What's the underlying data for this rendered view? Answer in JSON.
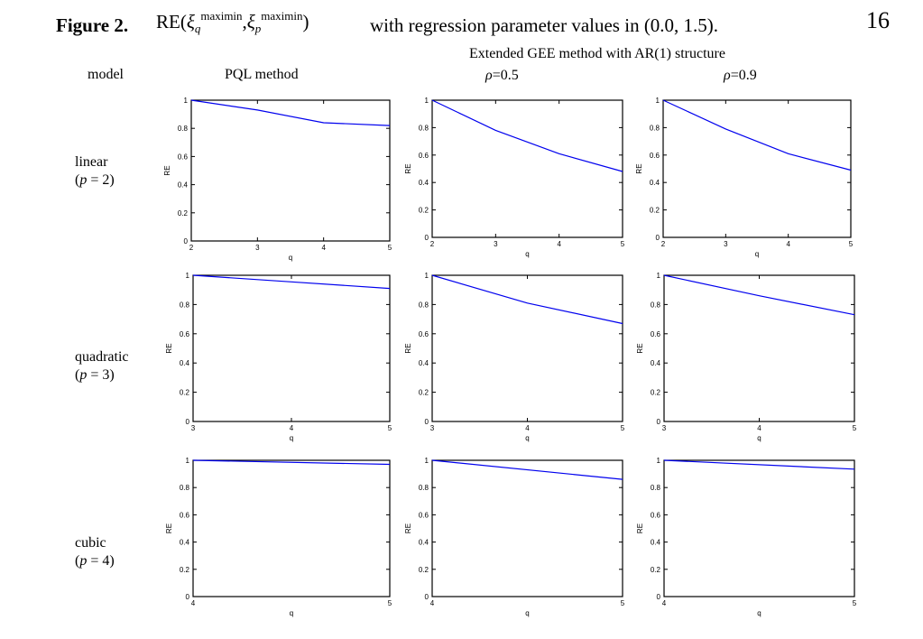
{
  "figure": {
    "label": "Figure 2.",
    "re_prefix": "RE(",
    "xi_q": "ξ",
    "sup_q": "maximin",
    "sub_q": "q",
    "comma": ",",
    "xi_p": "ξ",
    "sup_p": "maximin",
    "sub_p": "p",
    "close": ")",
    "caption_rest": "with regression parameter values in (0.0, 1.5).",
    "page_number": "16"
  },
  "headers": {
    "model": "model",
    "pql": "PQL method",
    "gee": "Extended GEE method with AR(1) structure",
    "rho_symbol": "ρ",
    "rho1": "=0.5",
    "rho2": "=0.9"
  },
  "rows": [
    {
      "name": "linear",
      "p_var": "p",
      "p_val": " = 2)"
    },
    {
      "name": "quadratic",
      "p_var": "p",
      "p_val": " = 3)"
    },
    {
      "name": "cubic",
      "p_var": "p",
      "p_val": " = 4)"
    }
  ],
  "line_color": "#0000ee",
  "chart_data": [
    {
      "type": "line",
      "row": "linear",
      "method": "PQL",
      "xlabel": "q",
      "ylabel": "RE",
      "x": [
        2,
        3,
        4,
        5
      ],
      "y": [
        1.0,
        0.93,
        0.84,
        0.82
      ],
      "xlim": [
        2,
        5
      ],
      "ylim": [
        0,
        1
      ],
      "xticks": [
        "2",
        "3",
        "4",
        "5"
      ],
      "yticks": [
        "0",
        "0.2",
        "0.4",
        "0.6",
        "0.8",
        "1"
      ]
    },
    {
      "type": "line",
      "row": "linear",
      "method": "GEE rho=0.5",
      "xlabel": "q",
      "ylabel": "RE",
      "x": [
        2,
        3,
        4,
        5
      ],
      "y": [
        1.0,
        0.78,
        0.61,
        0.48
      ],
      "xlim": [
        2,
        5
      ],
      "ylim": [
        0,
        1
      ],
      "xticks": [
        "2",
        "3",
        "4",
        "5"
      ],
      "yticks": [
        "0",
        "0.2",
        "0.4",
        "0.6",
        "0.8",
        "1"
      ]
    },
    {
      "type": "line",
      "row": "linear",
      "method": "GEE rho=0.9",
      "xlabel": "q",
      "ylabel": "RE",
      "x": [
        2,
        3,
        4,
        5
      ],
      "y": [
        1.0,
        0.79,
        0.61,
        0.49
      ],
      "xlim": [
        2,
        5
      ],
      "ylim": [
        0,
        1
      ],
      "xticks": [
        "2",
        "3",
        "4",
        "5"
      ],
      "yticks": [
        "0",
        "0.2",
        "0.4",
        "0.6",
        "0.8",
        "1"
      ]
    },
    {
      "type": "line",
      "row": "quadratic",
      "method": "PQL",
      "xlabel": "q",
      "ylabel": "RE",
      "x": [
        3,
        4,
        5
      ],
      "y": [
        1.0,
        0.955,
        0.91
      ],
      "xlim": [
        3,
        5
      ],
      "ylim": [
        0,
        1
      ],
      "xticks": [
        "3",
        "4",
        "5"
      ],
      "yticks": [
        "0",
        "0.2",
        "0.4",
        "0.6",
        "0.8",
        "1"
      ]
    },
    {
      "type": "line",
      "row": "quadratic",
      "method": "GEE rho=0.5",
      "xlabel": "q",
      "ylabel": "RE",
      "x": [
        3,
        4,
        5
      ],
      "y": [
        1.0,
        0.81,
        0.67
      ],
      "xlim": [
        3,
        5
      ],
      "ylim": [
        0,
        1
      ],
      "xticks": [
        "3",
        "4",
        "5"
      ],
      "yticks": [
        "0",
        "0.2",
        "0.4",
        "0.6",
        "0.8",
        "1"
      ]
    },
    {
      "type": "line",
      "row": "quadratic",
      "method": "GEE rho=0.9",
      "xlabel": "q",
      "ylabel": "RE",
      "x": [
        3,
        4,
        5
      ],
      "y": [
        1.0,
        0.86,
        0.73
      ],
      "xlim": [
        3,
        5
      ],
      "ylim": [
        0,
        1
      ],
      "xticks": [
        "3",
        "4",
        "5"
      ],
      "yticks": [
        "0",
        "0.2",
        "0.4",
        "0.6",
        "0.8",
        "1"
      ]
    },
    {
      "type": "line",
      "row": "cubic",
      "method": "PQL",
      "xlabel": "q",
      "ylabel": "RE",
      "x": [
        4,
        5
      ],
      "y": [
        1.0,
        0.97
      ],
      "xlim": [
        4,
        5
      ],
      "ylim": [
        0,
        1
      ],
      "xticks": [
        "4",
        "5"
      ],
      "yticks": [
        "0",
        "0.2",
        "0.4",
        "0.6",
        "0.8",
        "1"
      ]
    },
    {
      "type": "line",
      "row": "cubic",
      "method": "GEE rho=0.5",
      "xlabel": "q",
      "ylabel": "RE",
      "x": [
        4,
        5
      ],
      "y": [
        1.0,
        0.86
      ],
      "xlim": [
        4,
        5
      ],
      "ylim": [
        0,
        1
      ],
      "xticks": [
        "4",
        "5"
      ],
      "yticks": [
        "0",
        "0.2",
        "0.4",
        "0.6",
        "0.8",
        "1"
      ]
    },
    {
      "type": "line",
      "row": "cubic",
      "method": "GEE rho=0.9",
      "xlabel": "q",
      "ylabel": "RE",
      "x": [
        4,
        5
      ],
      "y": [
        1.0,
        0.935
      ],
      "xlim": [
        4,
        5
      ],
      "ylim": [
        0,
        1
      ],
      "xticks": [
        "4",
        "5"
      ],
      "yticks": [
        "0",
        "0.2",
        "0.4",
        "0.6",
        "0.8",
        "1"
      ]
    }
  ]
}
